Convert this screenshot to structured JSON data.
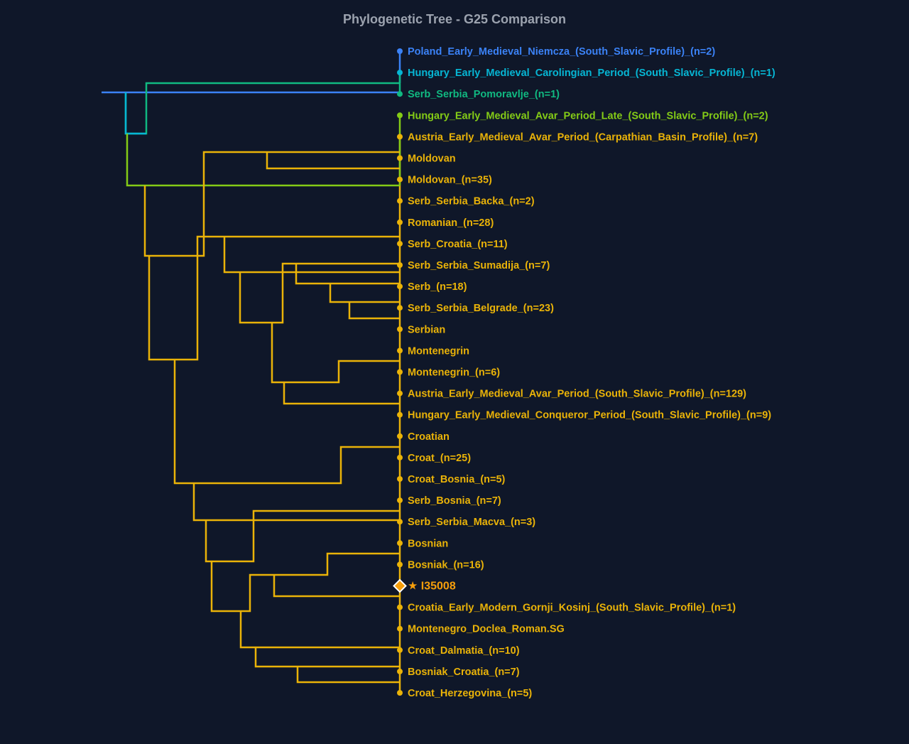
{
  "title": "Phylogenetic Tree - G25 Comparison",
  "colors": {
    "background": "#0f1729",
    "blue": "#3b82f6",
    "cyan": "#06b6d4",
    "green": "#10b981",
    "lime": "#84cc16",
    "yellow": "#eab308",
    "highlight": "#f59e0b"
  },
  "leaves": [
    {
      "label": "Poland_Early_Medieval_Niemcza_(South_Slavic_Profile)_(n=2)",
      "color": "#3b82f6"
    },
    {
      "label": "Hungary_Early_Medieval_Carolingian_Period_(South_Slavic_Profile)_(n=1)",
      "color": "#06b6d4"
    },
    {
      "label": "Serb_Serbia_Pomoravlje_(n=1)",
      "color": "#10b981"
    },
    {
      "label": "Hungary_Early_Medieval_Avar_Period_Late_(South_Slavic_Profile)_(n=2)",
      "color": "#84cc16"
    },
    {
      "label": "Austria_Early_Medieval_Avar_Period_(Carpathian_Basin_Profile)_(n=7)",
      "color": "#eab308"
    },
    {
      "label": "Moldovan",
      "color": "#eab308"
    },
    {
      "label": "Moldovan_(n=35)",
      "color": "#eab308"
    },
    {
      "label": "Serb_Serbia_Backa_(n=2)",
      "color": "#eab308"
    },
    {
      "label": "Romanian_(n=28)",
      "color": "#eab308"
    },
    {
      "label": "Serb_Croatia_(n=11)",
      "color": "#eab308"
    },
    {
      "label": "Serb_Serbia_Sumadija_(n=7)",
      "color": "#eab308"
    },
    {
      "label": "Serb_(n=18)",
      "color": "#eab308"
    },
    {
      "label": "Serb_Serbia_Belgrade_(n=23)",
      "color": "#eab308"
    },
    {
      "label": "Serbian",
      "color": "#eab308"
    },
    {
      "label": "Montenegrin",
      "color": "#eab308"
    },
    {
      "label": "Montenegrin_(n=6)",
      "color": "#eab308"
    },
    {
      "label": "Austria_Early_Medieval_Avar_Period_(South_Slavic_Profile)_(n=129)",
      "color": "#eab308"
    },
    {
      "label": "Hungary_Early_Medieval_Conqueror_Period_(South_Slavic_Profile)_(n=9)",
      "color": "#eab308"
    },
    {
      "label": "Croatian",
      "color": "#eab308"
    },
    {
      "label": "Croat_(n=25)",
      "color": "#eab308"
    },
    {
      "label": "Croat_Bosnia_(n=5)",
      "color": "#eab308"
    },
    {
      "label": "Serb_Bosnia_(n=7)",
      "color": "#eab308"
    },
    {
      "label": "Serb_Serbia_Macva_(n=3)",
      "color": "#eab308"
    },
    {
      "label": "Bosnian",
      "color": "#eab308"
    },
    {
      "label": "Bosniak_(n=16)",
      "color": "#eab308"
    },
    {
      "label": "★ I35008",
      "color": "#f59e0b",
      "highlight": true
    },
    {
      "label": "Croatia_Early_Modern_Gornji_Kosinj_(South_Slavic_Profile)_(n=1)",
      "color": "#eab308"
    },
    {
      "label": "Montenegro_Doclea_Roman.SG",
      "color": "#eab308"
    },
    {
      "label": "Croat_Dalmatia_(n=10)",
      "color": "#eab308"
    },
    {
      "label": "Bosniak_Croatia_(n=7)",
      "color": "#eab308"
    },
    {
      "label": "Croat_Herzegovina_(n=5)",
      "color": "#eab308"
    }
  ]
}
